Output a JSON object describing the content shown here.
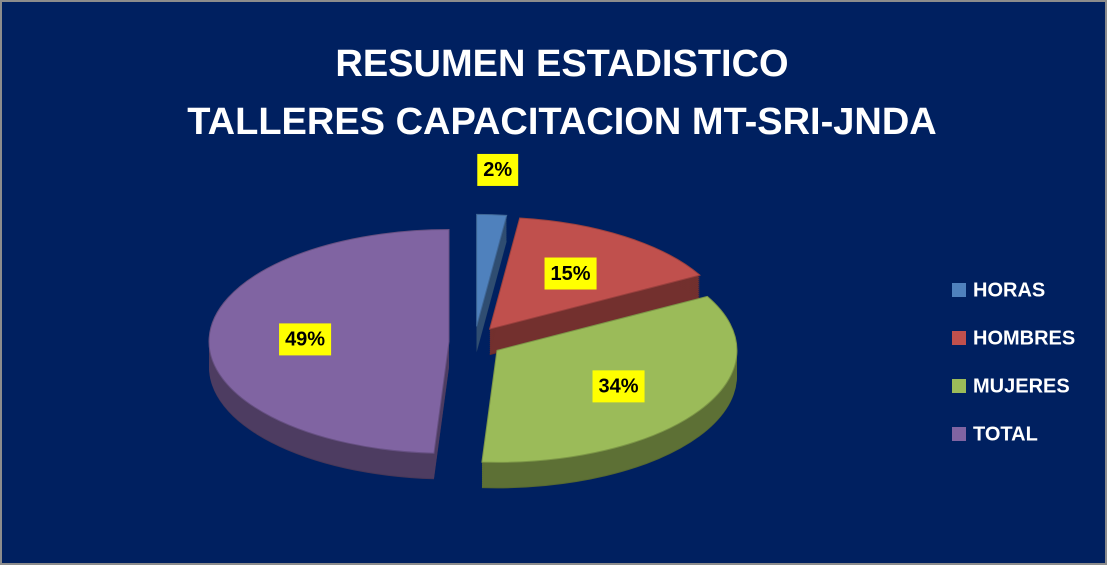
{
  "chart_data": {
    "type": "pie",
    "title": "RESUMEN ESTADISTICO",
    "subtitle": "TALLERES  CAPACITACION MT-SRI-JNDA",
    "categories": [
      "HORAS",
      "HOMBRES",
      "MUJERES",
      "TOTAL"
    ],
    "values": [
      2,
      15,
      34,
      49
    ],
    "value_labels": [
      "2%",
      "15%",
      "34%",
      "49%"
    ],
    "colors": [
      "#4f81bd",
      "#c0504d",
      "#9bbb59",
      "#8064a2"
    ],
    "legend": "right"
  }
}
